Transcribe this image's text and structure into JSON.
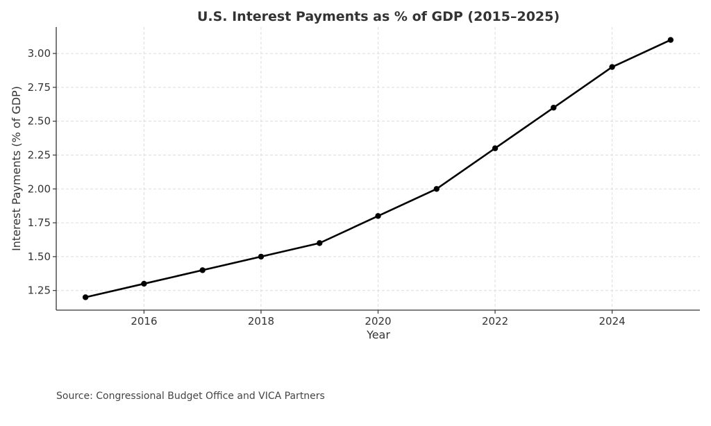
{
  "chart_data": {
    "type": "line",
    "title": "U.S. Interest Payments as % of GDP (2015–2025)",
    "xlabel": "Year",
    "ylabel": "Interest Payments (% of GDP)",
    "x": [
      2015,
      2016,
      2017,
      2018,
      2019,
      2020,
      2021,
      2022,
      2023,
      2024,
      2025
    ],
    "series": [
      {
        "values": [
          1.2,
          1.3,
          1.4,
          1.5,
          1.6,
          1.8,
          2.0,
          2.3,
          2.6,
          2.9,
          3.1
        ],
        "color": "#000000",
        "marker": "circle"
      }
    ],
    "xlim": [
      2014.5,
      2025.5
    ],
    "ylim": [
      1.105,
      3.195
    ],
    "xticks": [
      2016,
      2018,
      2020,
      2022,
      2024
    ],
    "xtick_labels": [
      "2016",
      "2018",
      "2020",
      "2022",
      "2024"
    ],
    "yticks": [
      1.25,
      1.5,
      1.75,
      2.0,
      2.25,
      2.5,
      2.75,
      3.0
    ],
    "ytick_labels": [
      "1.25",
      "1.50",
      "1.75",
      "2.00",
      "2.25",
      "2.50",
      "2.75",
      "3.00"
    ],
    "grid": true,
    "legend": "none"
  },
  "source": "Source: Congressional Budget Office and VICA Partners"
}
